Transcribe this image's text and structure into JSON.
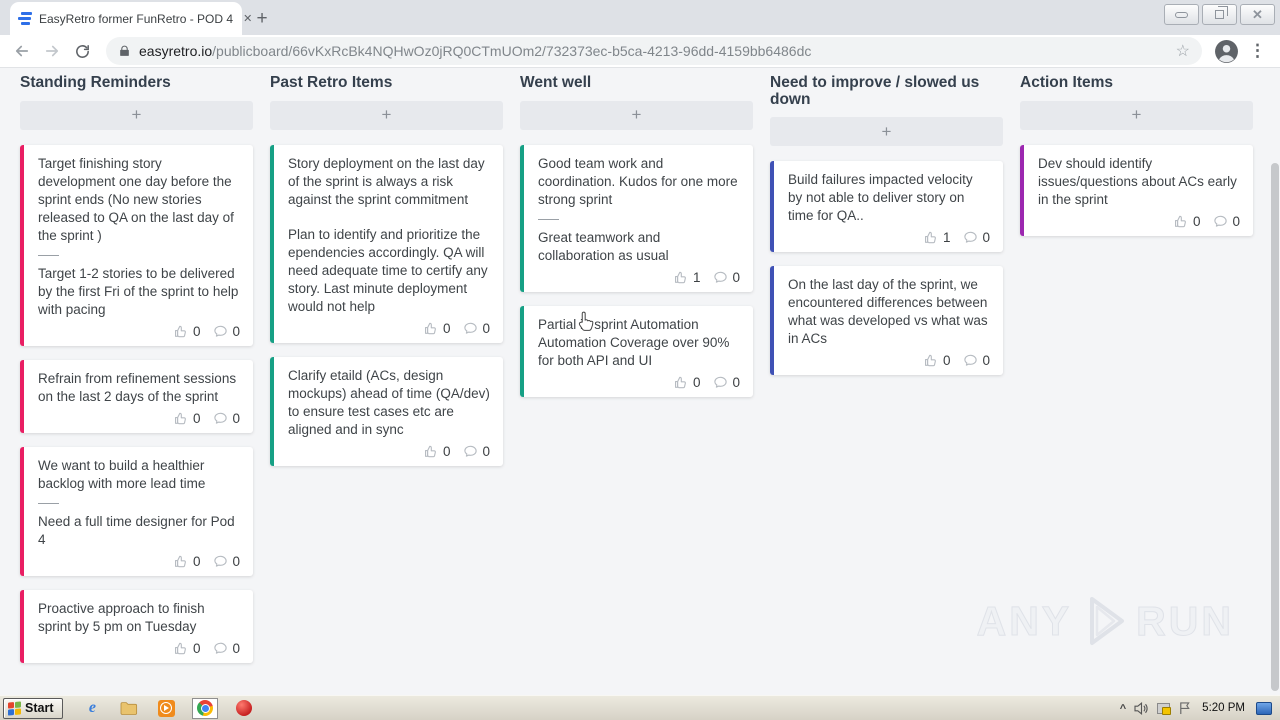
{
  "browser": {
    "tab_title": "EasyRetro former FunRetro - POD 4",
    "url": {
      "domain": "easyretro.io",
      "path": "/publicboard/66vKxRcBk4NQHwOz0jRQ0CTmUOm2/732373ec-b5ca-4213-96dd-4159bb6486dc"
    },
    "icons": {
      "tab_close": "✕",
      "new_tab": "+",
      "star": "☆",
      "menu": "⋮"
    }
  },
  "board": {
    "background": "#f4f5f7",
    "add_label": "+",
    "columns": [
      {
        "title": "Standing Reminders",
        "accent": "#e91e63",
        "cards": [
          {
            "blocks": [
              "Target finishing story development one day before the sprint ends (No new stories released to QA on the last day of the sprint )",
              "Target 1-2 stories to be delivered by the first Fri of the sprint to help with pacing"
            ],
            "divider": true,
            "likes": 0,
            "comments": 0
          },
          {
            "blocks": [
              "Refrain from refinement sessions on the last 2 days of the sprint"
            ],
            "divider": false,
            "likes": 0,
            "comments": 0
          },
          {
            "blocks": [
              "We want to build a healthier backlog with more lead time",
              "Need a full time designer for Pod 4"
            ],
            "divider": true,
            "likes": 0,
            "comments": 0
          },
          {
            "blocks": [
              "Proactive approach to finish sprint by 5 pm on Tuesday"
            ],
            "divider": false,
            "likes": 0,
            "comments": 0
          }
        ]
      },
      {
        "title": "Past Retro Items",
        "accent": "#16a085",
        "cards": [
          {
            "blocks": [
              "Story deployment on the last day of the sprint is always a risk against the sprint commitment",
              "Plan to identify and prioritize the ependencies accordingly. QA will need adequate time to certify any story. Last minute deployment would not help"
            ],
            "divider": false,
            "likes": 0,
            "comments": 0
          },
          {
            "blocks": [
              "Clarify etaild (ACs, design mockups) ahead of time (QA/dev) to ensure test cases etc are aligned and in sync"
            ],
            "divider": false,
            "likes": 0,
            "comments": 0
          }
        ]
      },
      {
        "title": "Went well",
        "accent": "#16a085",
        "cards": [
          {
            "blocks": [
              "Good team work and coordination. Kudos for one more strong sprint",
              "Great teamwork and collaboration as usual"
            ],
            "divider": true,
            "likes": 1,
            "comments": 0
          },
          {
            "blocks": [
              "Partial in sprint Automation Automation Coverage over 90% for both API and UI"
            ],
            "divider": false,
            "likes": 0,
            "comments": 0
          }
        ]
      },
      {
        "title": "Need to improve / slowed us down",
        "accent": "#3f51b5",
        "cards": [
          {
            "blocks": [
              "Build failures impacted velocity by not able to deliver story on time for QA.."
            ],
            "divider": false,
            "likes": 1,
            "comments": 0
          },
          {
            "blocks": [
              "On the last day of the sprint, we encountered differences between what was developed vs what was in ACs"
            ],
            "divider": false,
            "likes": 0,
            "comments": 0
          }
        ]
      },
      {
        "title": "Action Items",
        "accent": "#9c27b0",
        "cards": [
          {
            "blocks": [
              "Dev should identify issues/questions about ACs early in the sprint"
            ],
            "divider": false,
            "likes": 0,
            "comments": 0
          }
        ]
      }
    ]
  },
  "watermark": {
    "left": "ANY",
    "right": "RUN"
  },
  "taskbar": {
    "start_label": "Start",
    "time": "5:20 PM"
  }
}
